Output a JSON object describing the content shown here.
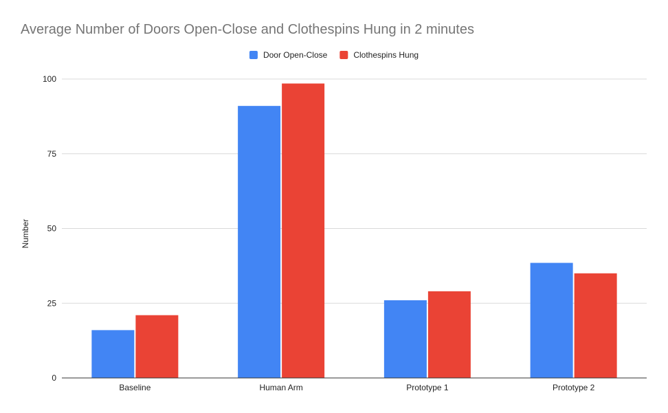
{
  "chart_data": {
    "type": "bar",
    "title": "Average Number of Doors Open-Close and Clothespins Hung in 2 minutes",
    "xlabel": "",
    "ylabel": "Number",
    "categories": [
      "Baseline",
      "Human Arm",
      "Prototype 1",
      "Prototype 2"
    ],
    "series": [
      {
        "name": "Door Open-Close",
        "color": "#4285f4",
        "values": [
          16,
          91,
          26,
          38.5
        ]
      },
      {
        "name": "Clothespins Hung",
        "color": "#ea4335",
        "values": [
          21,
          98.5,
          29,
          35
        ]
      }
    ],
    "ylim": [
      0,
      100
    ],
    "yticks": [
      0,
      25,
      50,
      75,
      100
    ],
    "grid": true,
    "legend_position": "top"
  }
}
